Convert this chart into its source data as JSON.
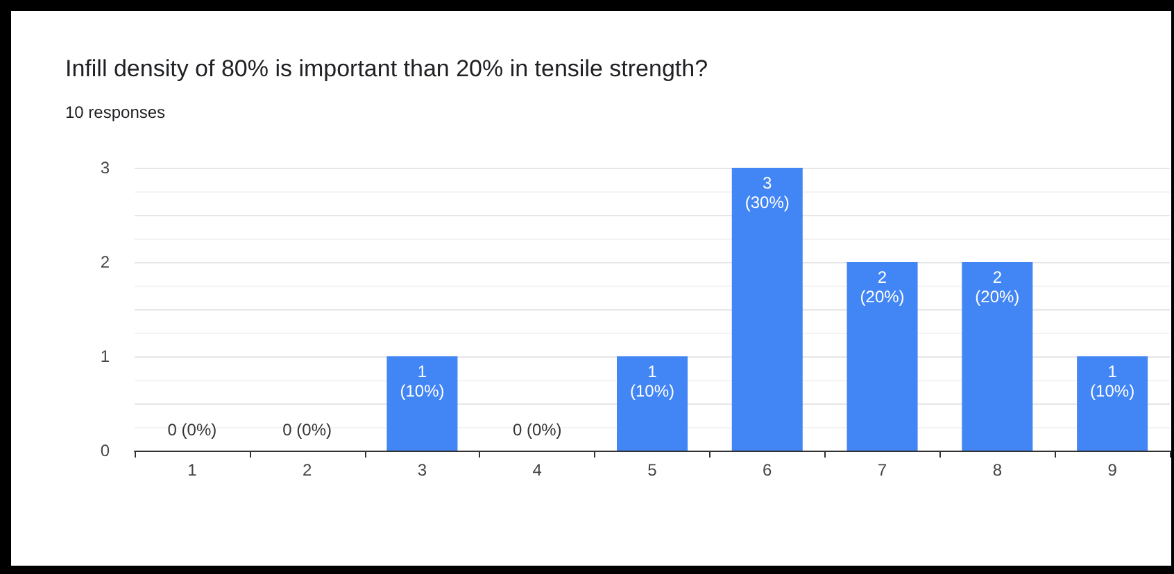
{
  "chart_data": {
    "type": "bar",
    "title": "Infill density of 80% is important than 20% in tensile strength?",
    "subtitle": "10 responses",
    "categories": [
      "1",
      "2",
      "3",
      "4",
      "5",
      "6",
      "7",
      "8",
      "9"
    ],
    "values": [
      0,
      0,
      1,
      0,
      1,
      3,
      2,
      2,
      1
    ],
    "value_labels": [
      "0 (0%)",
      "0 (0%)",
      "1 (10%)",
      "0 (0%)",
      "1 (10%)",
      "3 (30%)",
      "2 (20%)",
      "2 (20%)",
      "1 (10%)"
    ],
    "color": "#4285f4",
    "ylim": [
      0,
      3
    ],
    "yticks": [
      0,
      1,
      2,
      3
    ],
    "grid": "y"
  }
}
